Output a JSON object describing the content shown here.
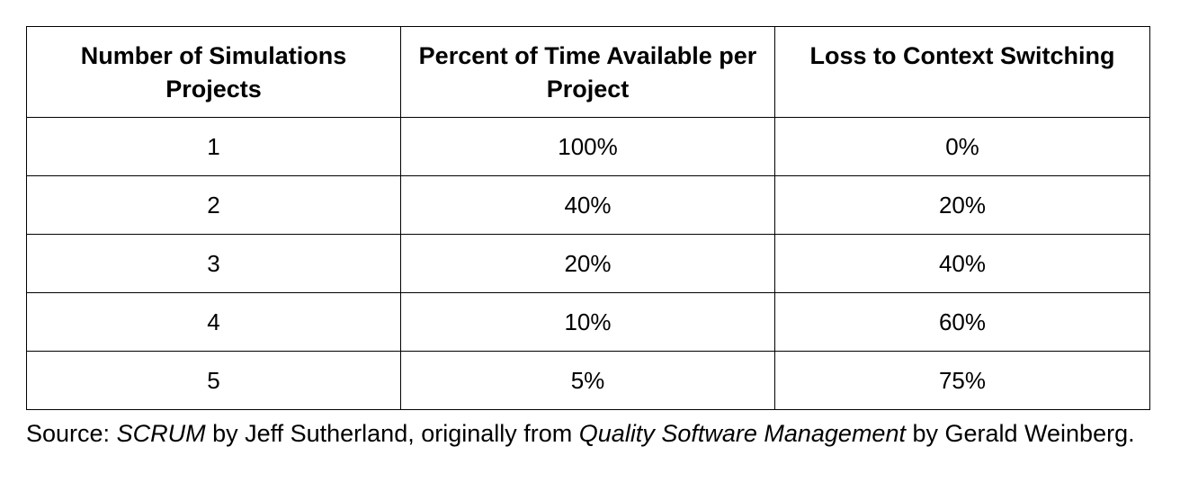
{
  "table": {
    "headers": [
      "Number of Simulations Projects",
      "Percent of Time Available per Project",
      "Loss to Context Switching"
    ],
    "rows": [
      [
        "1",
        "100%",
        "0%"
      ],
      [
        "2",
        "40%",
        "20%"
      ],
      [
        "3",
        "20%",
        "40%"
      ],
      [
        "4",
        "10%",
        "60%"
      ],
      [
        "5",
        "5%",
        "75%"
      ]
    ]
  },
  "source": {
    "prefix": "Source: ",
    "book": "SCRUM",
    "middle": " by Jeff Sutherland, originally from ",
    "original_book": "Quality Software Management",
    "suffix": " by Gerald Weinberg."
  }
}
